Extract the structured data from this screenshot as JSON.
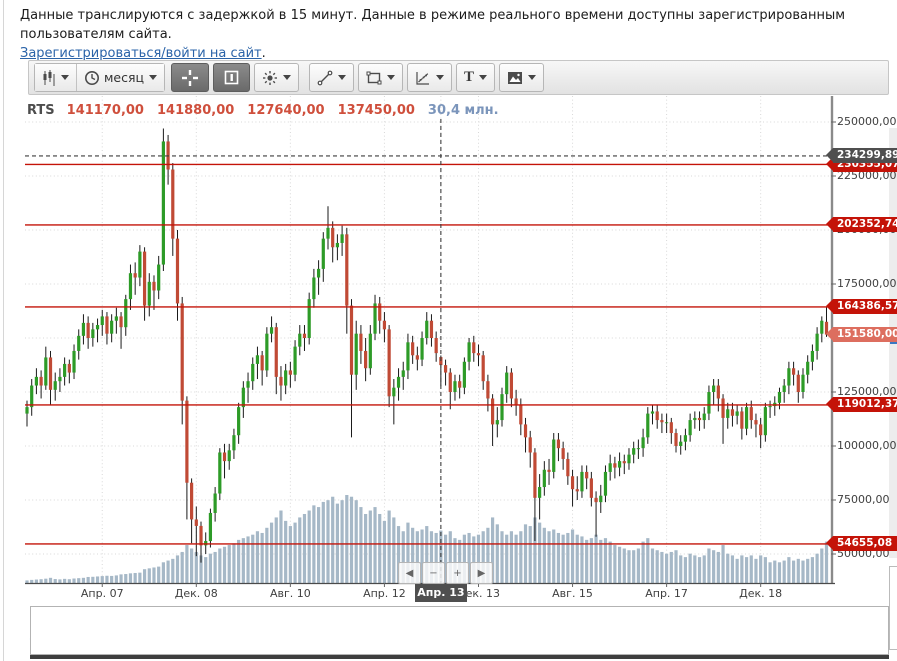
{
  "page": {
    "notice_line1": "Данные транслируются с задержкой в 15 минут. Данные в режиме реального времени доступны зарегистрированным пользователям сайта.",
    "register_link": "Зарегистрироваться/войти на сайт",
    "link_suffix": "."
  },
  "toolbar": {
    "timeframe_label": "месяц",
    "text_tool_label": "T",
    "buttons": [
      {
        "name": "chart-type-button",
        "icon": "candlestick-icon",
        "caret": true,
        "active": false
      },
      {
        "name": "timeframe-button",
        "icon": "clock-icon",
        "label": "месяц",
        "caret": true,
        "active": false
      },
      {
        "name": "crosshair-button",
        "icon": "crosshair-icon",
        "caret": false,
        "active": true
      },
      {
        "name": "indicator-panel-button",
        "icon": "panel-icon",
        "caret": false,
        "active": true
      },
      {
        "name": "appearance-button",
        "icon": "brightness-icon",
        "caret": true,
        "active": false
      },
      {
        "name": "draw-line-button",
        "icon": "line-icon",
        "caret": true,
        "active": false
      },
      {
        "name": "draw-shape-button",
        "icon": "rectangle-icon",
        "caret": true,
        "active": false
      },
      {
        "name": "draw-regression-button",
        "icon": "regression-icon",
        "caret": true,
        "active": false
      },
      {
        "name": "draw-text-button",
        "label": "T",
        "caret": true,
        "active": false
      },
      {
        "name": "image-button",
        "icon": "image-icon",
        "caret": true,
        "active": false
      }
    ]
  },
  "chart": {
    "symbol": "RTS",
    "legend": {
      "open": "141170,00",
      "high": "141880,00",
      "low": "127640,00",
      "close": "137450,00",
      "volume": "30,4 млн."
    },
    "colors": {
      "up": "#2d9b27",
      "down": "#c04a35",
      "wick": "#1a1a1a",
      "volume": "#a6b8c7",
      "level_line": "#c41308",
      "badge_red": "#c41308",
      "badge_last": "#dd6e5f",
      "badge_crosshair": "#4f4f4f",
      "grid": "#d8d8d8",
      "nav_fill": "#8bc5f2",
      "nav_stroke": "#5aa7e8"
    },
    "y_axis": {
      "ticks": [
        {
          "label": "250000,00",
          "price": 250000
        },
        {
          "label": "225000,00",
          "price": 225000
        },
        {
          "label": "200000,00",
          "price": 200000
        },
        {
          "label": "175000,00",
          "price": 175000
        },
        {
          "label": "150000,00",
          "price": 150000
        },
        {
          "label": "125000,00",
          "price": 125000
        },
        {
          "label": "100000,00",
          "price": 100000
        },
        {
          "label": "75000,00",
          "price": 75000
        },
        {
          "label": "50000,00",
          "price": 50000
        }
      ]
    },
    "x_axis": {
      "ticks": [
        {
          "label": "Апр. 07",
          "month_index": 16,
          "highlight": false
        },
        {
          "label": "Дек. 08",
          "month_index": 36,
          "highlight": false
        },
        {
          "label": "Авг. 10",
          "month_index": 56,
          "highlight": false
        },
        {
          "label": "Апр. 12",
          "month_index": 76,
          "highlight": false
        },
        {
          "label": "Апр. 13",
          "month_index": 88,
          "highlight": true
        },
        {
          "label": "Дек. 13",
          "month_index": 96,
          "highlight": false
        },
        {
          "label": "Авг. 15",
          "month_index": 116,
          "highlight": false
        },
        {
          "label": "Апр. 17",
          "month_index": 136,
          "highlight": false
        },
        {
          "label": "Дек. 18",
          "month_index": 156,
          "highlight": false
        }
      ]
    },
    "levels": [
      {
        "label": "230355,07",
        "price": 230355.07
      },
      {
        "label": "202352,74",
        "price": 202352.74
      },
      {
        "label": "164386,57",
        "price": 164386.57
      },
      {
        "label": "119012,37",
        "price": 119012.37
      },
      {
        "label": "54655,08",
        "price": 54655.08
      }
    ],
    "last_price": {
      "label": "151580,00",
      "price": 151580
    },
    "crosshair": {
      "price_label": "234299,89",
      "price": 234299.89,
      "date_label": "Апр. 13",
      "month_index": 88
    },
    "nav_buttons": [
      {
        "name": "scroll-left-button",
        "glyph": "◀"
      },
      {
        "name": "zoom-out-button",
        "glyph": "−"
      },
      {
        "name": "zoom-in-button",
        "glyph": "+"
      },
      {
        "name": "scroll-right-button",
        "glyph": "▶"
      }
    ]
  },
  "chart_data": {
    "type": "candlestick",
    "symbol": "RTS",
    "timeframe": "месяц",
    "price_unit_scale": 1000,
    "volume_unit": "млн",
    "ylim": [
      36500,
      262000
    ],
    "candles": [
      [
        115,
        121,
        109,
        118,
        1.5
      ],
      [
        118,
        131,
        114,
        128,
        1.8
      ],
      [
        128,
        136,
        124,
        132,
        2
      ],
      [
        132,
        135,
        122,
        128,
        2.2
      ],
      [
        128,
        146,
        126,
        141,
        2.5
      ],
      [
        141,
        144,
        119,
        126,
        3
      ],
      [
        126,
        134,
        121,
        130,
        2.3
      ],
      [
        130,
        136,
        125,
        132,
        2.1
      ],
      [
        132,
        141,
        128,
        138,
        2.4
      ],
      [
        138,
        140,
        129,
        134,
        2.2
      ],
      [
        134,
        147,
        131,
        144,
        2.6
      ],
      [
        144,
        154,
        140,
        151,
        2.8
      ],
      [
        151,
        161,
        147,
        157,
        3
      ],
      [
        157,
        160,
        145,
        150,
        3.5
      ],
      [
        150,
        157,
        146,
        154,
        3.6
      ],
      [
        154,
        159,
        148,
        156,
        3.8
      ],
      [
        156,
        163,
        151,
        160,
        4
      ],
      [
        160,
        162,
        147,
        152,
        4.2
      ],
      [
        152,
        161,
        148,
        158,
        4.1
      ],
      [
        158,
        164,
        152,
        160,
        4.4
      ],
      [
        160,
        162,
        145,
        155,
        5
      ],
      [
        155,
        170,
        151,
        168,
        5.2
      ],
      [
        168,
        184,
        163,
        180,
        5.6
      ],
      [
        180,
        185,
        170,
        178,
        5.8
      ],
      [
        178,
        193,
        174,
        190,
        6
      ],
      [
        190,
        192,
        158,
        165,
        8
      ],
      [
        165,
        180,
        160,
        176,
        8.5
      ],
      [
        176,
        179,
        163,
        172,
        9
      ],
      [
        172,
        188,
        168,
        184,
        9.5
      ],
      [
        184,
        247,
        181,
        241,
        12
      ],
      [
        241,
        244,
        221,
        228,
        13
      ],
      [
        228,
        231,
        188,
        196,
        14
      ],
      [
        196,
        200,
        158,
        166,
        16
      ],
      [
        166,
        169,
        110,
        121,
        18
      ],
      [
        121,
        123,
        66,
        83,
        22
      ],
      [
        83,
        85,
        55,
        66,
        20
      ],
      [
        66,
        72,
        49,
        63,
        18
      ],
      [
        63,
        65,
        46,
        54,
        16
      ],
      [
        54,
        60,
        50,
        56,
        15
      ],
      [
        56,
        71,
        53,
        69,
        17
      ],
      [
        69,
        81,
        65,
        78,
        18
      ],
      [
        78,
        99,
        75,
        97,
        20
      ],
      [
        97,
        101,
        85,
        93,
        21
      ],
      [
        93,
        101,
        89,
        98,
        22
      ],
      [
        98,
        108,
        94,
        105,
        23
      ],
      [
        105,
        120,
        101,
        118,
        25
      ],
      [
        118,
        130,
        113,
        127,
        26
      ],
      [
        127,
        134,
        120,
        130,
        27
      ],
      [
        130,
        141,
        126,
        138,
        28
      ],
      [
        138,
        146,
        131,
        142,
        30
      ],
      [
        142,
        144,
        128,
        135,
        29
      ],
      [
        135,
        155,
        132,
        152,
        32
      ],
      [
        152,
        160,
        148,
        155,
        35
      ],
      [
        155,
        157,
        124,
        132,
        38
      ],
      [
        132,
        137,
        121,
        128,
        42
      ],
      [
        128,
        138,
        124,
        135,
        36
      ],
      [
        135,
        139,
        127,
        133,
        33
      ],
      [
        133,
        149,
        130,
        146,
        35
      ],
      [
        146,
        156,
        142,
        152,
        38
      ],
      [
        152,
        156,
        144,
        150,
        40
      ],
      [
        150,
        171,
        147,
        168,
        42
      ],
      [
        168,
        182,
        164,
        178,
        45
      ],
      [
        178,
        186,
        170,
        182,
        44
      ],
      [
        182,
        199,
        176,
        196,
        47
      ],
      [
        196,
        211,
        191,
        201,
        48
      ],
      [
        201,
        204,
        185,
        192,
        50
      ],
      [
        192,
        198,
        186,
        194,
        46
      ],
      [
        194,
        202,
        188,
        198,
        48
      ],
      [
        198,
        201,
        152,
        165,
        51
      ],
      [
        165,
        168,
        104,
        133,
        50
      ],
      [
        133,
        158,
        126,
        152,
        48
      ],
      [
        152,
        156,
        138,
        144,
        44
      ],
      [
        144,
        150,
        130,
        136,
        40
      ],
      [
        136,
        156,
        133,
        152,
        42
      ],
      [
        152,
        170,
        149,
        166,
        44
      ],
      [
        166,
        169,
        152,
        158,
        40
      ],
      [
        158,
        162,
        148,
        154,
        36
      ],
      [
        154,
        156,
        118,
        123,
        42
      ],
      [
        123,
        131,
        110,
        127,
        38
      ],
      [
        127,
        136,
        121,
        132,
        33
      ],
      [
        132,
        139,
        126,
        135,
        30
      ],
      [
        135,
        152,
        131,
        148,
        35
      ],
      [
        148,
        151,
        138,
        142,
        32
      ],
      [
        142,
        146,
        135,
        140,
        30
      ],
      [
        140,
        153,
        137,
        150,
        31
      ],
      [
        150,
        162,
        147,
        158,
        33
      ],
      [
        158,
        161,
        146,
        150,
        30
      ],
      [
        150,
        153,
        139,
        143,
        29
      ],
      [
        141.17,
        141.88,
        127.64,
        137.45,
        30.4
      ],
      [
        137.45,
        140,
        128,
        134,
        28
      ],
      [
        134,
        136,
        117,
        125,
        30
      ],
      [
        125,
        133,
        121,
        130,
        26
      ],
      [
        130,
        133,
        122,
        127,
        25
      ],
      [
        127,
        141,
        124,
        139,
        28
      ],
      [
        139,
        150,
        135,
        148,
        29
      ],
      [
        148,
        151,
        139,
        143,
        27
      ],
      [
        143,
        147,
        137,
        142,
        28
      ],
      [
        142,
        144,
        126,
        130,
        30
      ],
      [
        130,
        133,
        116,
        122,
        32
      ],
      [
        122,
        124,
        100,
        110,
        38
      ],
      [
        110,
        118,
        104,
        112,
        34
      ],
      [
        112,
        127,
        109,
        124,
        30
      ],
      [
        124,
        137,
        120,
        134,
        28
      ],
      [
        134,
        136,
        118,
        122,
        30
      ],
      [
        122,
        126,
        114,
        119,
        28
      ],
      [
        119,
        122,
        105,
        110,
        30
      ],
      [
        110,
        113,
        97,
        104,
        34
      ],
      [
        104,
        107,
        90,
        97,
        33
      ],
      [
        97,
        99,
        56,
        76,
        38
      ],
      [
        76,
        87,
        66,
        81,
        35
      ],
      [
        81,
        93,
        77,
        89,
        32
      ],
      [
        89,
        94,
        82,
        88,
        30
      ],
      [
        88,
        106,
        85,
        103,
        31
      ],
      [
        103,
        106,
        93,
        99,
        29
      ],
      [
        99,
        102,
        89,
        94,
        28
      ],
      [
        94,
        97,
        82,
        86,
        29
      ],
      [
        86,
        89,
        72,
        80,
        31
      ],
      [
        80,
        86,
        75,
        79,
        28
      ],
      [
        79,
        91,
        76,
        88,
        27
      ],
      [
        88,
        91,
        80,
        85,
        25
      ],
      [
        85,
        88,
        72,
        76,
        26
      ],
      [
        76,
        79,
        58,
        74,
        28
      ],
      [
        74,
        82,
        69,
        77,
        25
      ],
      [
        77,
        91,
        74,
        88,
        26
      ],
      [
        88,
        96,
        84,
        92,
        24
      ],
      [
        92,
        95,
        85,
        90,
        22
      ],
      [
        90,
        97,
        86,
        93,
        21
      ],
      [
        93,
        96,
        87,
        92,
        20
      ],
      [
        92,
        99,
        89,
        96,
        19
      ],
      [
        96,
        102,
        92,
        99,
        19
      ],
      [
        99,
        103,
        94,
        99,
        20
      ],
      [
        99,
        108,
        95,
        104,
        24
      ],
      [
        104,
        118,
        101,
        115,
        26
      ],
      [
        115,
        119,
        110,
        116,
        20
      ],
      [
        116,
        119,
        108,
        112,
        19
      ],
      [
        112,
        115,
        106,
        111,
        18
      ],
      [
        111,
        115,
        106,
        111,
        17
      ],
      [
        111,
        113,
        101,
        106,
        18
      ],
      [
        106,
        108,
        97,
        100,
        19
      ],
      [
        100,
        105,
        96,
        102,
        16
      ],
      [
        102,
        108,
        98,
        105,
        15
      ],
      [
        105,
        115,
        102,
        112,
        17
      ],
      [
        112,
        116,
        108,
        113,
        16
      ],
      [
        113,
        116,
        107,
        112,
        15
      ],
      [
        112,
        118,
        108,
        115,
        16
      ],
      [
        115,
        128,
        112,
        125,
        20
      ],
      [
        125,
        131,
        119,
        128,
        19
      ],
      [
        128,
        131,
        116,
        122,
        18
      ],
      [
        122,
        124,
        101,
        113,
        22
      ],
      [
        113,
        120,
        108,
        117,
        17
      ],
      [
        117,
        120,
        109,
        114,
        16
      ],
      [
        114,
        119,
        110,
        116,
        14
      ],
      [
        116,
        118,
        103,
        108,
        16
      ],
      [
        108,
        120,
        105,
        118,
        15
      ],
      [
        118,
        121,
        108,
        112,
        16
      ],
      [
        112,
        115,
        104,
        110,
        14
      ],
      [
        110,
        113,
        99,
        105,
        16
      ],
      [
        105,
        120,
        102,
        118,
        15
      ],
      [
        118,
        121,
        113,
        118.5,
        12
      ],
      [
        118.5,
        123,
        114,
        120,
        13
      ],
      [
        120,
        127,
        117,
        125,
        12
      ],
      [
        125,
        131,
        120,
        128,
        13
      ],
      [
        128,
        139,
        124,
        136,
        15
      ],
      [
        136,
        139,
        128,
        133,
        13
      ],
      [
        133,
        135,
        120,
        125,
        14
      ],
      [
        125,
        136,
        122,
        133,
        13
      ],
      [
        133,
        142,
        129,
        139,
        14
      ],
      [
        139,
        147,
        135,
        144,
        15
      ],
      [
        144,
        155,
        140,
        152,
        17
      ],
      [
        152,
        160,
        148,
        158,
        20
      ],
      [
        157.5,
        164.39,
        150.5,
        151.58,
        24
      ]
    ]
  }
}
